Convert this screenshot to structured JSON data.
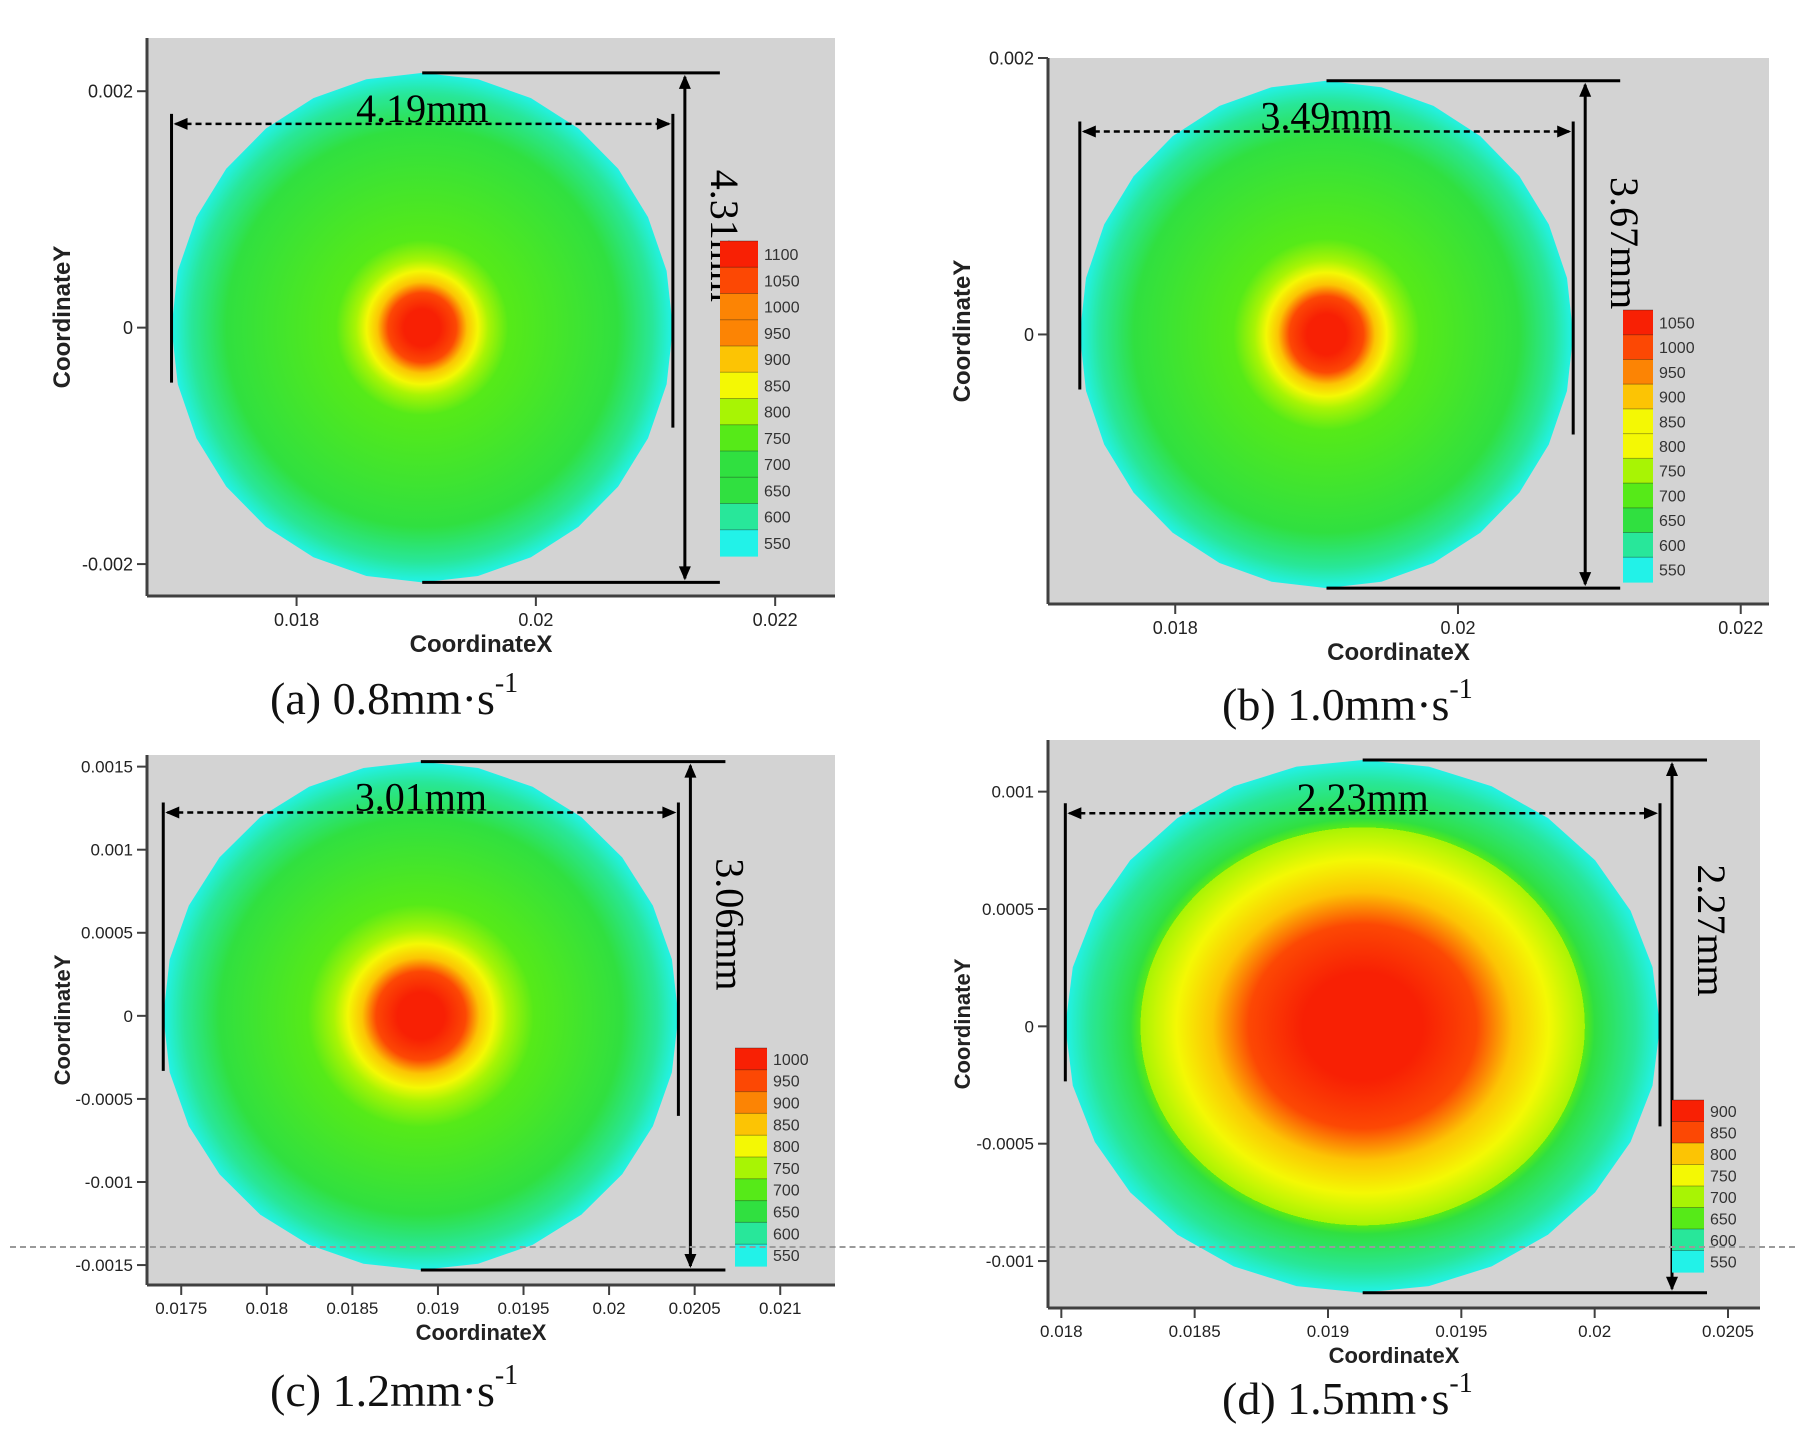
{
  "figure": {
    "colors": {
      "plot_bg": "#d3d3d3",
      "axis": "#404040",
      "tick_text": "#222222",
      "annotation": "#000000",
      "colormap": [
        "#22f2e8",
        "#28e79a",
        "#30e040",
        "#56ea18",
        "#a8f404",
        "#f4f804",
        "#fcc404",
        "#fc8404",
        "#fc4804",
        "#f82004"
      ]
    }
  },
  "panels": [
    {
      "id": "a",
      "caption_label": "(a)",
      "caption_value": "0.8mm·s",
      "caption_exp": "-1",
      "xlabel": "CoordinateX",
      "ylabel": "CoordinateY",
      "xlim": [
        0.01675,
        0.0225
      ],
      "ylim": [
        -0.00227,
        0.00245
      ],
      "xticks": [
        {
          "v": 0.018,
          "label": "0.018"
        },
        {
          "v": 0.02,
          "label": "0.02"
        },
        {
          "v": 0.022,
          "label": "0.022"
        }
      ],
      "yticks": [
        {
          "v": -0.002,
          "label": "-0.002"
        },
        {
          "v": 0,
          "label": "0"
        },
        {
          "v": 0.002,
          "label": "0.002"
        }
      ],
      "center": [
        0.01905,
        0.0
      ],
      "width_mm": 4.19,
      "height_mm": 4.31,
      "width_label": "4.19mm",
      "height_label": "4.31mm",
      "hot_spot_mm": 0.6,
      "legend": [
        "1100",
        "1050",
        "1000",
        "950",
        "900",
        "850",
        "800",
        "750",
        "700",
        "650",
        "600",
        "550"
      ]
    },
    {
      "id": "b",
      "caption_label": "(b)",
      "caption_value": "1.0mm·s",
      "caption_exp": "-1",
      "xlabel": "CoordinateX",
      "ylabel": "CoordinateY",
      "xlim": [
        0.0171,
        0.0222
      ],
      "ylim": [
        -0.00195,
        0.002
      ],
      "xticks": [
        {
          "v": 0.018,
          "label": "0.018"
        },
        {
          "v": 0.02,
          "label": "0.02"
        },
        {
          "v": 0.022,
          "label": "0.022"
        }
      ],
      "yticks": [
        {
          "v": 0,
          "label": "0"
        },
        {
          "v": 0.002,
          "label": "0.002"
        }
      ],
      "center": [
        0.01907,
        0.0
      ],
      "width_mm": 3.49,
      "height_mm": 3.67,
      "width_label": "3.49mm",
      "height_label": "3.67mm",
      "hot_spot_mm": 0.55,
      "legend": [
        "1050",
        "1000",
        "950",
        "900",
        "850",
        "800",
        "750",
        "700",
        "650",
        "600",
        "550"
      ]
    },
    {
      "id": "c",
      "caption_label": "(c)",
      "caption_value": "1.2mm·s",
      "caption_exp": "-1",
      "xlabel": "CoordinateX",
      "ylabel": "CoordinateY",
      "xlim": [
        0.0173,
        0.02132
      ],
      "ylim": [
        -0.00162,
        0.00157
      ],
      "xticks": [
        {
          "v": 0.0175,
          "label": "0.0175"
        },
        {
          "v": 0.018,
          "label": "0.018"
        },
        {
          "v": 0.0185,
          "label": "0.0185"
        },
        {
          "v": 0.019,
          "label": "0.019"
        },
        {
          "v": 0.0195,
          "label": "0.0195"
        },
        {
          "v": 0.02,
          "label": "0.02"
        },
        {
          "v": 0.0205,
          "label": "0.0205"
        },
        {
          "v": 0.021,
          "label": "0.021"
        }
      ],
      "yticks": [
        {
          "v": -0.0015,
          "label": "-0.0015"
        },
        {
          "v": -0.001,
          "label": "-0.001"
        },
        {
          "v": -0.0005,
          "label": "-0.0005"
        },
        {
          "v": 0,
          "label": "0"
        },
        {
          "v": 0.0005,
          "label": "0.0005"
        },
        {
          "v": 0.001,
          "label": "0.001"
        },
        {
          "v": 0.0015,
          "label": "0.0015"
        }
      ],
      "center": [
        0.0189,
        0.0
      ],
      "width_mm": 3.01,
      "height_mm": 3.06,
      "width_label": "3.01mm",
      "height_label": "3.06mm",
      "hot_spot_mm": 0.55,
      "legend": [
        "1000",
        "950",
        "900",
        "850",
        "800",
        "750",
        "700",
        "650",
        "600",
        "550"
      ]
    },
    {
      "id": "d",
      "caption_label": "(d)",
      "caption_value": "1.5mm·s",
      "caption_exp": "-1",
      "xlabel": "CoordinateX",
      "ylabel": "CoordinateY",
      "xlim": [
        0.01795,
        0.02062
      ],
      "ylim": [
        -0.0012,
        0.00122
      ],
      "xticks": [
        {
          "v": 0.018,
          "label": "0.018"
        },
        {
          "v": 0.0185,
          "label": "0.0185"
        },
        {
          "v": 0.019,
          "label": "0.019"
        },
        {
          "v": 0.0195,
          "label": "0.0195"
        },
        {
          "v": 0.02,
          "label": "0.02"
        },
        {
          "v": 0.0205,
          "label": "0.0205"
        }
      ],
      "yticks": [
        {
          "v": -0.001,
          "label": "-0.001"
        },
        {
          "v": -0.0005,
          "label": "-0.0005"
        },
        {
          "v": 0,
          "label": "0"
        },
        {
          "v": 0.0005,
          "label": "0.0005"
        },
        {
          "v": 0.001,
          "label": "0.001"
        }
      ],
      "center": [
        0.01913,
        0.0
      ],
      "width_mm": 2.23,
      "height_mm": 2.27,
      "width_label": "2.23mm",
      "height_label": "2.27mm",
      "hot_spot_mm": 0.9,
      "legend": [
        "900",
        "850",
        "800",
        "750",
        "700",
        "650",
        "600",
        "550"
      ]
    }
  ],
  "chart_data": [
    {
      "type": "heatmap",
      "title": "(a) 0.8mm·s-1",
      "xlabel": "CoordinateX",
      "ylabel": "CoordinateY",
      "xlim": [
        0.01675,
        0.0225
      ],
      "ylim": [
        -0.00227,
        0.00245
      ],
      "pool_center": [
        0.01905,
        0.0
      ],
      "pool_width_mm": 4.19,
      "pool_height_mm": 4.31,
      "colorbar_levels": [
        1100,
        1050,
        1000,
        950,
        900,
        850,
        800,
        750,
        700,
        650,
        600,
        550
      ]
    },
    {
      "type": "heatmap",
      "title": "(b) 1.0mm·s-1",
      "xlabel": "CoordinateX",
      "ylabel": "CoordinateY",
      "xlim": [
        0.0171,
        0.0222
      ],
      "ylim": [
        -0.00195,
        0.002
      ],
      "pool_center": [
        0.01907,
        0.0
      ],
      "pool_width_mm": 3.49,
      "pool_height_mm": 3.67,
      "colorbar_levels": [
        1050,
        1000,
        950,
        900,
        850,
        800,
        750,
        700,
        650,
        600,
        550
      ]
    },
    {
      "type": "heatmap",
      "title": "(c) 1.2mm·s-1",
      "xlabel": "CoordinateX",
      "ylabel": "CoordinateY",
      "xlim": [
        0.0173,
        0.02132
      ],
      "ylim": [
        -0.00162,
        0.00157
      ],
      "pool_center": [
        0.0189,
        0.0
      ],
      "pool_width_mm": 3.01,
      "pool_height_mm": 3.06,
      "colorbar_levels": [
        1000,
        950,
        900,
        850,
        800,
        750,
        700,
        650,
        600,
        550
      ]
    },
    {
      "type": "heatmap",
      "title": "(d) 1.5mm·s-1",
      "xlabel": "CoordinateX",
      "ylabel": "CoordinateY",
      "xlim": [
        0.01795,
        0.02062
      ],
      "ylim": [
        -0.0012,
        0.00122
      ],
      "pool_center": [
        0.01913,
        0.0
      ],
      "pool_width_mm": 2.23,
      "pool_height_mm": 2.27,
      "colorbar_levels": [
        900,
        850,
        800,
        750,
        700,
        650,
        600,
        550
      ]
    }
  ]
}
